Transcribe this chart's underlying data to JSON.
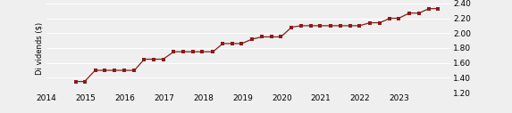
{
  "ylabel": "Di vidends ($)",
  "ylim": [
    1.2,
    2.4
  ],
  "yticks": [
    1.2,
    1.4,
    1.6,
    1.8,
    2.0,
    2.2,
    2.4
  ],
  "xlim": [
    2014.0,
    2024.3
  ],
  "xticks": [
    2014,
    2015,
    2016,
    2017,
    2018,
    2019,
    2020,
    2021,
    2022,
    2023
  ],
  "line_color": "#8B1A1A",
  "marker": "s",
  "marker_size": 2.8,
  "background_color": "#efefef",
  "grid_color": "#ffffff",
  "x": [
    2014.75,
    2014.98,
    2015.25,
    2015.5,
    2015.75,
    2015.98,
    2016.25,
    2016.5,
    2016.75,
    2016.98,
    2017.25,
    2017.5,
    2017.75,
    2017.98,
    2018.25,
    2018.5,
    2018.75,
    2018.98,
    2019.25,
    2019.5,
    2019.75,
    2019.98,
    2020.25,
    2020.5,
    2020.75,
    2020.98,
    2021.25,
    2021.5,
    2021.75,
    2021.98,
    2022.25,
    2022.5,
    2022.75,
    2022.98,
    2023.25,
    2023.5,
    2023.75,
    2023.98
  ],
  "y": [
    1.35,
    1.35,
    1.5,
    1.5,
    1.5,
    1.5,
    1.5,
    1.65,
    1.65,
    1.65,
    1.75,
    1.75,
    1.75,
    1.75,
    1.75,
    1.86,
    1.86,
    1.86,
    1.92,
    1.95,
    1.95,
    1.95,
    2.08,
    2.1,
    2.1,
    2.1,
    2.1,
    2.1,
    2.1,
    2.1,
    2.14,
    2.14,
    2.2,
    2.2,
    2.27,
    2.27,
    2.33,
    2.33
  ],
  "left_ytick_fontsize": 6,
  "right_ytick_fontsize": 6.5,
  "xtick_fontsize": 6.5
}
